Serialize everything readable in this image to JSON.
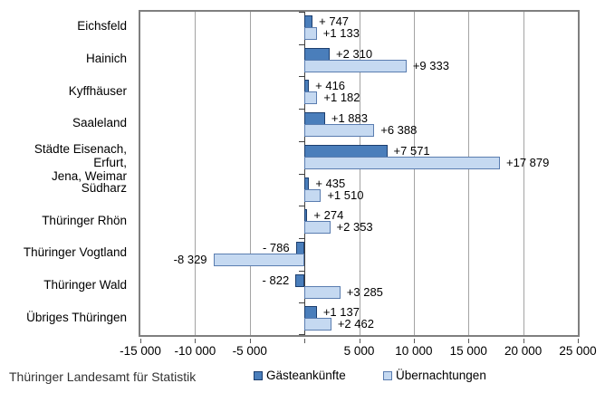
{
  "chart_data": {
    "type": "bar",
    "orientation": "horizontal",
    "title": "",
    "xlabel": "",
    "ylabel": "",
    "xlim": [
      -15000,
      25000
    ],
    "x_tick_step": 5000,
    "x_ticks": [
      {
        "value": -15000,
        "label": "-15 000"
      },
      {
        "value": -10000,
        "label": "-10 000"
      },
      {
        "value": -5000,
        "label": "-5 000"
      },
      {
        "value": 0,
        "label": ""
      },
      {
        "value": 5000,
        "label": "5 000"
      },
      {
        "value": 10000,
        "label": "10 000"
      },
      {
        "value": 15000,
        "label": "15 000"
      },
      {
        "value": 20000,
        "label": "20 000"
      },
      {
        "value": 25000,
        "label": "25 000"
      }
    ],
    "grid": true,
    "legend_position": "bottom",
    "categories": [
      "Eichsfeld",
      "Hainich",
      "Kyffhäuser",
      "Saaleland",
      "Städte Eisenach, Erfurt, Jena, Weimar",
      "Südharz",
      "Thüringer Rhön",
      "Thüringer Vogtland",
      "Thüringer Wald",
      "Übriges Thüringen"
    ],
    "category_display": [
      "Eichsfeld",
      "Hainich",
      "Kyffhäuser",
      "Saaleland",
      "Städte Eisenach, Erfurt,\nJena, Weimar",
      "Südharz",
      "Thüringer Rhön",
      "Thüringer Vogtland",
      "Thüringer Wald",
      "Übriges Thüringen"
    ],
    "series": [
      {
        "name": "Gästeankünfte",
        "color": "#4a7ebb",
        "border_color": "#1c3e6e",
        "values": [
          747,
          2310,
          416,
          1883,
          7571,
          435,
          274,
          -786,
          -822,
          1137
        ],
        "labels": [
          "+ 747",
          "+2 310",
          "+ 416",
          "+1 883",
          "+7 571",
          "+ 435",
          "+ 274",
          "- 786",
          "- 822",
          "+1 137"
        ]
      },
      {
        "name": "Übernachtungen",
        "color": "#c5d9f1",
        "border_color": "#5a7db0",
        "values": [
          1133,
          9333,
          1182,
          6388,
          17879,
          1510,
          2353,
          -8329,
          3285,
          2462
        ],
        "labels": [
          "+1 133",
          "+9 333",
          "+1 182",
          "+6 388",
          "+17 879",
          "+1 510",
          "+2 353",
          "-8 329",
          "+3 285",
          "+2 462"
        ]
      }
    ]
  },
  "colors": {
    "plot_border": "#7f7f7f",
    "gridline": "#a3a3a3",
    "zero_axis": "#3f3f3f",
    "background": "#ffffff"
  },
  "footer": {
    "source": "Thüringer Landesamt für Statistik"
  }
}
